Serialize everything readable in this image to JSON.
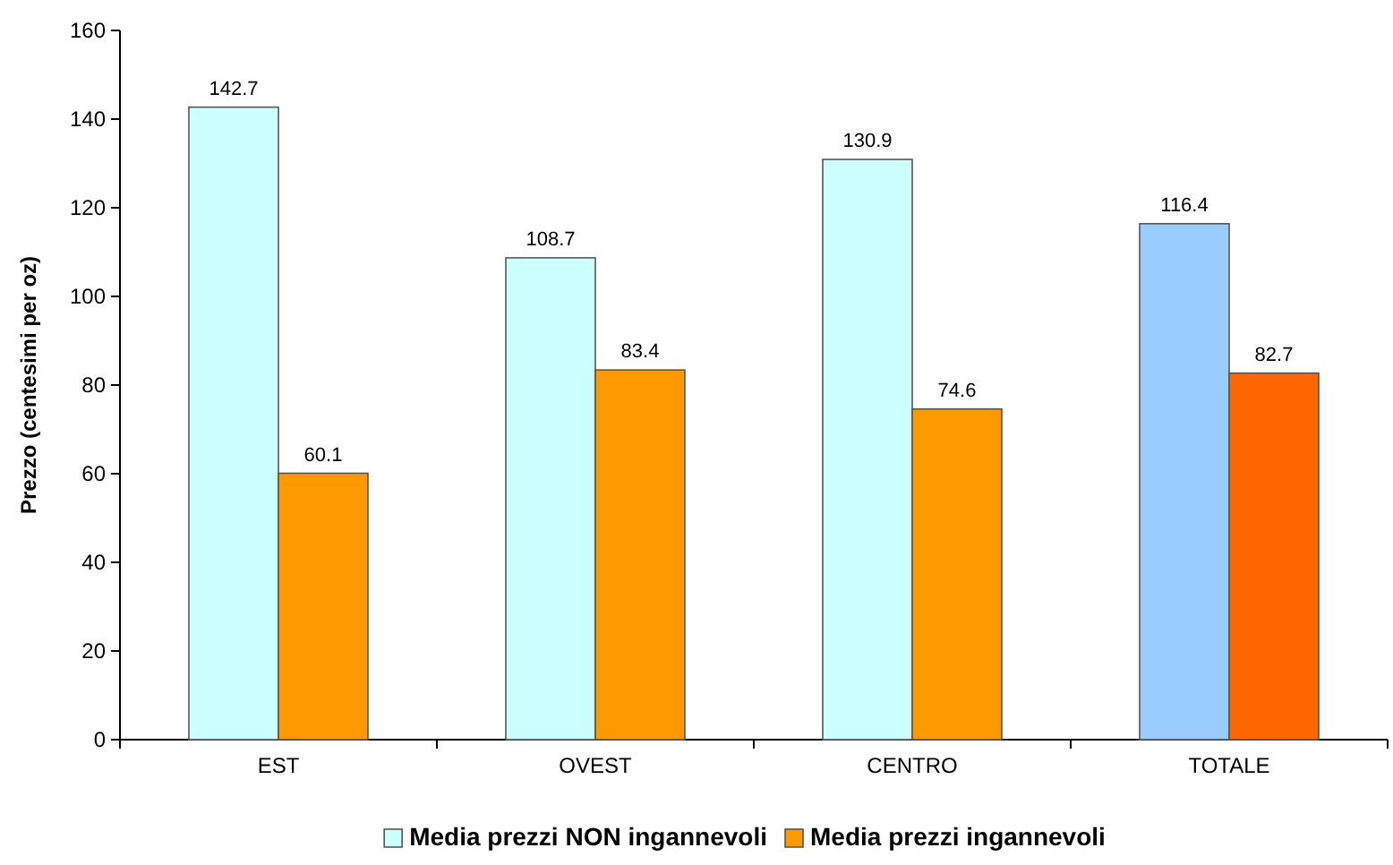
{
  "chart_data": {
    "type": "bar",
    "ylabel": "Prezzo (centesimi per oz)",
    "categories": [
      "EST",
      "OVEST",
      "CENTRO",
      "TOTALE"
    ],
    "series": [
      {
        "name": "Media prezzi NON ingannevoli",
        "color": "#ccffff",
        "colors": [
          "#ccffff",
          "#ccffff",
          "#ccffff",
          "#99ccff"
        ],
        "values": [
          142.7,
          108.7,
          130.9,
          116.4
        ]
      },
      {
        "name": "Media prezzi ingannevoli",
        "color": "#ff9900",
        "colors": [
          "#ff9900",
          "#ff9900",
          "#ff9900",
          "#ff6600"
        ],
        "values": [
          60.1,
          83.4,
          74.6,
          82.7
        ]
      }
    ],
    "ylim": [
      0,
      160
    ],
    "yticks": [
      0,
      20,
      40,
      60,
      80,
      100,
      120,
      140,
      160
    ],
    "data_labels": true,
    "grid": false,
    "legend": "bottom"
  }
}
